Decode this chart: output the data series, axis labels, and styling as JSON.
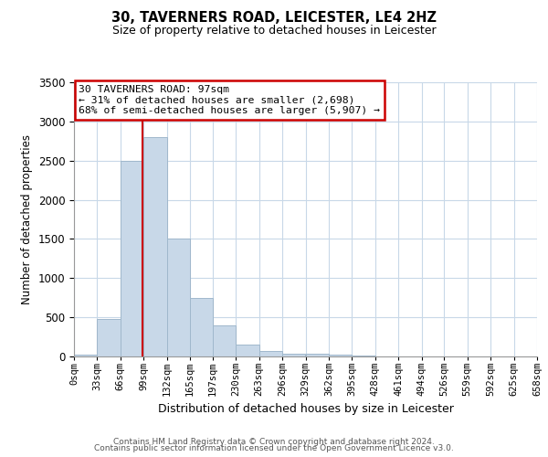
{
  "title_line1": "30, TAVERNERS ROAD, LEICESTER, LE4 2HZ",
  "title_line2": "Size of property relative to detached houses in Leicester",
  "xlabel": "Distribution of detached houses by size in Leicester",
  "ylabel": "Number of detached properties",
  "bin_edges": [
    0,
    33,
    66,
    99,
    132,
    165,
    197,
    230,
    263,
    296,
    329,
    362,
    395,
    428,
    461,
    494,
    526,
    559,
    592,
    625,
    658
  ],
  "bar_heights": [
    20,
    475,
    2500,
    2800,
    1500,
    750,
    400,
    150,
    75,
    40,
    30,
    20,
    10,
    0,
    0,
    0,
    0,
    0,
    0,
    0
  ],
  "bar_color": "#c8d8e8",
  "bar_edge_color": "#a0b8cc",
  "grid_color": "#c8d8e8",
  "vline_x": 97,
  "vline_color": "#cc0000",
  "ylim": [
    0,
    3500
  ],
  "yticks": [
    0,
    500,
    1000,
    1500,
    2000,
    2500,
    3000,
    3500
  ],
  "annotation_text_line1": "30 TAVERNERS ROAD: 97sqm",
  "annotation_text_line2": "← 31% of detached houses are smaller (2,698)",
  "annotation_text_line3": "68% of semi-detached houses are larger (5,907) →",
  "annotation_box_color": "#ffffff",
  "annotation_box_edge": "#cc0000",
  "footnote1": "Contains HM Land Registry data © Crown copyright and database right 2024.",
  "footnote2": "Contains public sector information licensed under the Open Government Licence v3.0."
}
